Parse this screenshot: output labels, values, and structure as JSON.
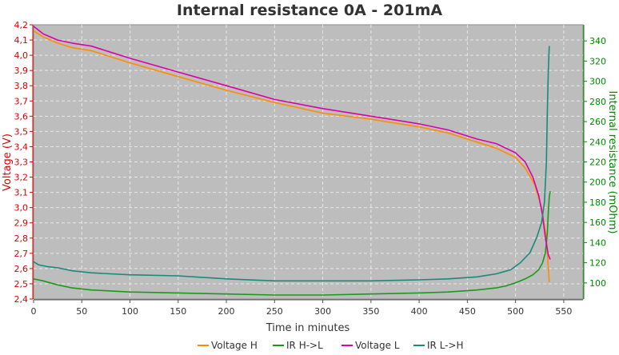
{
  "chart_data": {
    "type": "line",
    "title": "Internal resistance  0A - 201mA",
    "xlabel": "Time in minutes",
    "ylabel_left": "Voltage (V)",
    "ylabel_right": "Internal resistance (mOhm)",
    "xlim": [
      0,
      570
    ],
    "ylim_left": [
      2.4,
      4.2
    ],
    "ylim_right": [
      84,
      356
    ],
    "x_ticks": [
      0,
      50,
      100,
      150,
      200,
      250,
      300,
      350,
      400,
      450,
      500,
      550
    ],
    "y_left_ticks": [
      2.4,
      2.5,
      2.6,
      2.7,
      2.8,
      2.9,
      3.0,
      3.1,
      3.2,
      3.3,
      3.4,
      3.5,
      3.6,
      3.7,
      3.8,
      3.9,
      4.0,
      4.1,
      4.2
    ],
    "y_right_ticks": [
      100,
      120,
      140,
      160,
      180,
      200,
      220,
      240,
      260,
      280,
      300,
      320,
      340
    ],
    "grid": true,
    "legend_position": "bottom",
    "colors": {
      "plot_background": "#bdbdbd",
      "grid": "#e8e8e8",
      "left_axis": "#dd0000",
      "right_axis": "#008800"
    },
    "series": [
      {
        "name": "Voltage H",
        "axis": "left",
        "color": "#ff8c00",
        "x": [
          0,
          10,
          25,
          40,
          60,
          80,
          100,
          150,
          200,
          250,
          300,
          350,
          400,
          430,
          460,
          480,
          500,
          510,
          520,
          527,
          532,
          535
        ],
        "y": [
          4.16,
          4.12,
          4.08,
          4.05,
          4.03,
          3.99,
          3.95,
          3.86,
          3.77,
          3.69,
          3.62,
          3.58,
          3.53,
          3.49,
          3.43,
          3.39,
          3.33,
          3.26,
          3.15,
          3.0,
          2.8,
          2.51
        ]
      },
      {
        "name": "IR H->L",
        "axis": "right",
        "color": "#1a9a1a",
        "x": [
          0,
          10,
          25,
          40,
          60,
          80,
          100,
          150,
          200,
          250,
          300,
          350,
          400,
          430,
          460,
          480,
          490,
          500,
          510,
          518,
          524,
          528,
          531,
          533,
          534,
          535,
          536
        ],
        "y": [
          104,
          102,
          98,
          95,
          93,
          92,
          91,
          90,
          89,
          88,
          88,
          89,
          90,
          91,
          93,
          95,
          97,
          100,
          104,
          108,
          113,
          120,
          130,
          150,
          170,
          185,
          191
        ]
      },
      {
        "name": "Voltage L",
        "axis": "left",
        "color": "#dd00aa",
        "x": [
          0,
          10,
          25,
          40,
          60,
          80,
          100,
          150,
          200,
          250,
          300,
          350,
          400,
          430,
          460,
          480,
          500,
          510,
          518,
          524,
          528,
          531,
          534,
          536
        ],
        "y": [
          4.19,
          4.14,
          4.1,
          4.08,
          4.06,
          4.02,
          3.98,
          3.89,
          3.8,
          3.71,
          3.65,
          3.6,
          3.55,
          3.51,
          3.45,
          3.42,
          3.36,
          3.3,
          3.2,
          3.08,
          2.95,
          2.8,
          2.69,
          2.66
        ]
      },
      {
        "name": "IR L->H",
        "axis": "right",
        "color": "#1a8a7a",
        "x": [
          0,
          5,
          15,
          25,
          40,
          60,
          80,
          100,
          150,
          200,
          250,
          300,
          350,
          400,
          430,
          460,
          480,
          495,
          505,
          515,
          522,
          527,
          530,
          532,
          533,
          534,
          535
        ],
        "y": [
          121,
          118,
          116,
          115,
          112,
          110,
          109,
          108,
          107,
          104,
          102,
          102,
          102,
          103,
          104,
          106,
          109,
          113,
          120,
          130,
          145,
          160,
          180,
          220,
          270,
          310,
          335
        ]
      }
    ]
  }
}
